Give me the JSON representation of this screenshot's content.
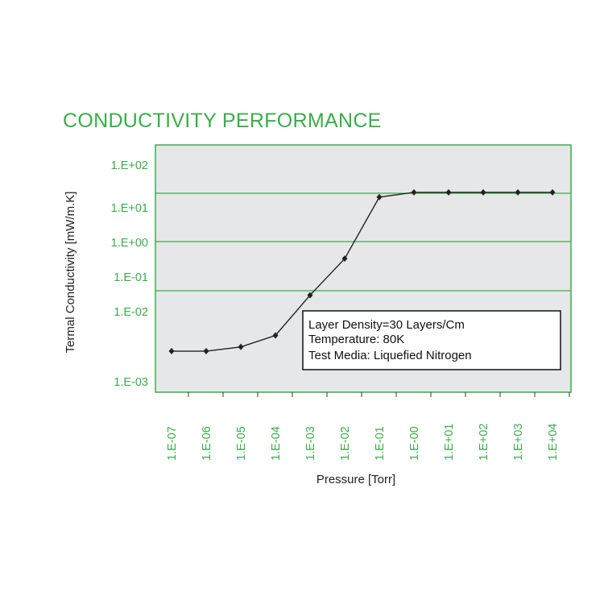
{
  "chart_data": {
    "type": "line",
    "title": "CONDUCTIVITY PERFORMANCE",
    "xlabel": "Pressure [Torr]",
    "ylabel": "Termal Conductivity [mW/m.K]",
    "x_scale": "log",
    "y_scale": "log",
    "x_categories": [
      "1.E-07",
      "1.E-06",
      "1.E-05",
      "1.E-04",
      "1.E-03",
      "1.E-02",
      "1.E-01",
      "1.E-00",
      "1.E+01",
      "1.E+02",
      "1.E+03",
      "1.E+04"
    ],
    "y_tick_labels": [
      "1.E+02",
      "1.E+01",
      "1.E+00",
      "1.E-01",
      "1.E-02",
      "1.E-03"
    ],
    "series": [
      {
        "x": [
          1e-07,
          1e-06,
          1e-05,
          0.0001,
          0.001,
          0.01,
          0.1,
          1.0,
          10.0,
          100.0,
          1000.0,
          10000.0
        ],
        "y": [
          0.0027,
          0.0027,
          0.0031,
          0.0045,
          0.029,
          0.33,
          17,
          22,
          22,
          22,
          22,
          22
        ]
      }
    ],
    "annotation": [
      "Layer Density=30 Layers/Cm",
      "Temperature: 80K",
      "Test Media: Liquefied Nitrogen"
    ],
    "grid": "horizontal",
    "colors": {
      "frame": "#3aad4a",
      "plot_bg": "#e6e7e8",
      "line": "#222222",
      "text": "#3aad4a"
    }
  }
}
